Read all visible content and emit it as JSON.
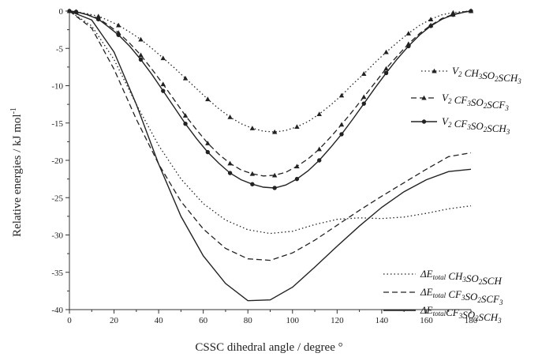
{
  "chart_data": {
    "type": "line",
    "xlabel": "CSSC dihedral angle / degree °",
    "ylabel": "Relative energies / kJ mol",
    "ylabel_sup": "-1",
    "xlim": [
      0,
      180
    ],
    "ylim": [
      -40,
      0
    ],
    "xticks": [
      "0",
      "20",
      "40",
      "60",
      "80",
      "100",
      "120",
      "140",
      "160",
      "180"
    ],
    "yticks": [
      "0",
      "-5",
      "-10",
      "-15",
      "-20",
      "-25",
      "-30",
      "-35",
      "-40"
    ],
    "grid": false,
    "series": [
      {
        "name": "V2 CH3SO2SCH3",
        "legend": [
          [
            "V",
            "2"
          ],
          [
            " CH",
            "3"
          ],
          [
            "SO",
            "2"
          ],
          [
            "SCH",
            "3"
          ]
        ],
        "style": "dotted-marker",
        "marker": "triangle",
        "x": [
          0,
          3,
          8,
          13,
          17,
          22,
          27,
          32,
          37,
          42,
          47,
          52,
          57,
          62,
          67,
          72,
          77,
          82,
          87,
          92,
          97,
          102,
          107,
          112,
          117,
          122,
          127,
          132,
          137,
          142,
          147,
          152,
          157,
          162,
          167,
          172,
          177,
          180
        ],
        "y": [
          0,
          -0.1,
          -0.35,
          -0.7,
          -1.2,
          -1.9,
          -2.8,
          -3.8,
          -5.0,
          -6.3,
          -7.6,
          -9.0,
          -10.4,
          -11.8,
          -13.1,
          -14.2,
          -15.1,
          -15.7,
          -16.1,
          -16.2,
          -16.0,
          -15.5,
          -14.8,
          -13.8,
          -12.6,
          -11.3,
          -9.8,
          -8.4,
          -6.9,
          -5.5,
          -4.2,
          -3.0,
          -1.9,
          -1.1,
          -0.5,
          -0.2,
          -0.05,
          0
        ]
      },
      {
        "name": "V2 CF3SO2SCF3",
        "legend": [
          [
            "V",
            "2"
          ],
          [
            " CF",
            "3"
          ],
          [
            "SO",
            "2"
          ],
          [
            "SCF",
            "3"
          ]
        ],
        "style": "dashed-marker",
        "marker": "triangle",
        "x": [
          0,
          3,
          8,
          13,
          17,
          22,
          27,
          32,
          37,
          42,
          47,
          52,
          57,
          62,
          67,
          72,
          77,
          82,
          87,
          92,
          97,
          102,
          107,
          112,
          117,
          122,
          127,
          132,
          137,
          142,
          147,
          152,
          157,
          162,
          167,
          172,
          177,
          180
        ],
        "y": [
          0,
          -0.1,
          -0.45,
          -1.0,
          -1.8,
          -2.9,
          -4.3,
          -5.9,
          -7.8,
          -9.8,
          -11.9,
          -14.0,
          -15.9,
          -17.7,
          -19.2,
          -20.4,
          -21.3,
          -21.8,
          -22.1,
          -22.0,
          -21.6,
          -20.8,
          -19.8,
          -18.5,
          -16.9,
          -15.2,
          -13.4,
          -11.5,
          -9.6,
          -7.7,
          -6.0,
          -4.4,
          -3.0,
          -1.9,
          -1.0,
          -0.45,
          -0.1,
          0
        ]
      },
      {
        "name": "V2 CF3SO2SCH3",
        "legend": [
          [
            "V",
            "2"
          ],
          [
            " CF",
            "3"
          ],
          [
            "SO",
            "2"
          ],
          [
            "SCH",
            "3"
          ]
        ],
        "style": "solid-marker",
        "marker": "circle",
        "x": [
          0,
          3,
          8,
          13,
          17,
          22,
          27,
          32,
          37,
          42,
          47,
          52,
          57,
          62,
          67,
          72,
          77,
          82,
          87,
          92,
          97,
          102,
          107,
          112,
          117,
          122,
          127,
          132,
          137,
          142,
          147,
          152,
          157,
          162,
          167,
          172,
          177,
          180
        ],
        "y": [
          0,
          -0.1,
          -0.5,
          -1.1,
          -2.0,
          -3.2,
          -4.7,
          -6.5,
          -8.5,
          -10.7,
          -12.9,
          -15.1,
          -17.1,
          -18.9,
          -20.4,
          -21.7,
          -22.6,
          -23.2,
          -23.6,
          -23.7,
          -23.3,
          -22.5,
          -21.4,
          -20.0,
          -18.3,
          -16.5,
          -14.5,
          -12.4,
          -10.3,
          -8.3,
          -6.4,
          -4.7,
          -3.2,
          -2.0,
          -1.1,
          -0.5,
          -0.15,
          0
        ]
      },
      {
        "name": "ΔEtotal CH3SO2SCH3",
        "legend": [
          [
            "ΔE",
            "total"
          ],
          [
            " CH",
            "3"
          ],
          [
            "SO",
            "2"
          ],
          [
            "SCH",
            ""
          ]
        ],
        "style": "dotted",
        "x": [
          0,
          10,
          20,
          30,
          40,
          50,
          60,
          70,
          80,
          90,
          100,
          110,
          120,
          130,
          140,
          150,
          160,
          170,
          180
        ],
        "y": [
          0,
          -2.0,
          -6.5,
          -12.5,
          -18.0,
          -22.5,
          -25.8,
          -28.0,
          -29.3,
          -29.8,
          -29.5,
          -28.6,
          -27.9,
          -27.7,
          -27.8,
          -27.6,
          -27.1,
          -26.5,
          -26.1
        ]
      },
      {
        "name": "ΔEtotal CF3SO2SCF3",
        "legend": [
          [
            "ΔE",
            "total"
          ],
          [
            " CF",
            "3"
          ],
          [
            "SO",
            "2"
          ],
          [
            "SCF",
            "3"
          ]
        ],
        "style": "dashed",
        "x": [
          0,
          10,
          20,
          30,
          40,
          50,
          60,
          70,
          80,
          90,
          100,
          110,
          120,
          130,
          140,
          150,
          160,
          170,
          180
        ],
        "y": [
          0,
          -2.3,
          -7.8,
          -14.5,
          -20.5,
          -25.5,
          -29.2,
          -31.8,
          -33.2,
          -33.4,
          -32.4,
          -30.7,
          -28.7,
          -26.7,
          -24.8,
          -23.0,
          -21.2,
          -19.5,
          -19.0
        ]
      },
      {
        "name": "ΔEtotal CF3SO2SCH3",
        "legend": [
          [
            "ΔE",
            "total"
          ],
          [
            "CF",
            "3"
          ],
          [
            "SO",
            "2"
          ],
          [
            "SCH",
            "3"
          ]
        ],
        "style": "solid",
        "x": [
          0,
          10,
          20,
          30,
          40,
          50,
          60,
          70,
          80,
          90,
          100,
          110,
          120,
          130,
          140,
          150,
          160,
          170,
          180
        ],
        "y": [
          0,
          -1.2,
          -5.5,
          -12.5,
          -20.5,
          -27.5,
          -32.8,
          -36.5,
          -38.8,
          -38.7,
          -37.0,
          -34.3,
          -31.5,
          -28.8,
          -26.3,
          -24.2,
          -22.6,
          -21.5,
          -21.2
        ]
      }
    ]
  }
}
